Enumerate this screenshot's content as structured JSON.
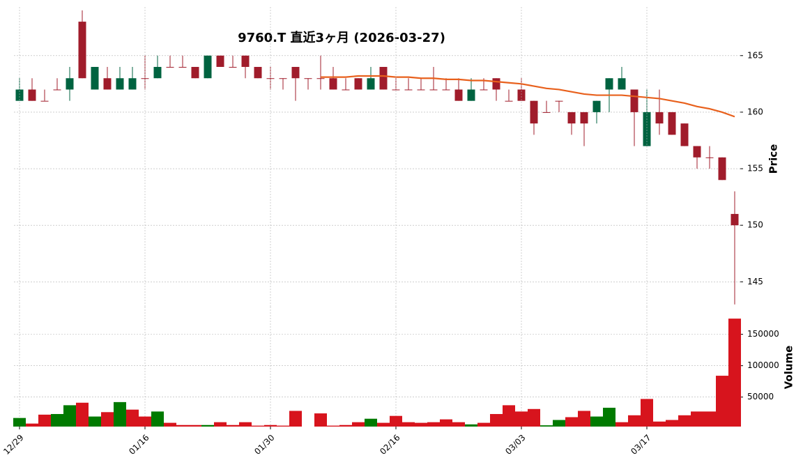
{
  "chart_data": [
    {
      "type": "candlestick",
      "title": "9760.T  直近3ヶ月  (2026-03-27)",
      "ylabel": "Price",
      "open": [
        161,
        162,
        161,
        162,
        162,
        168,
        162,
        163,
        162,
        162,
        163,
        163,
        164,
        164,
        164,
        163,
        165,
        164,
        165,
        164,
        163,
        163,
        164,
        163,
        163,
        163,
        162,
        163,
        162,
        164,
        162,
        162,
        162,
        162,
        162,
        162,
        161,
        162,
        163,
        161,
        162,
        161,
        160,
        161,
        160,
        160,
        160,
        162,
        162,
        162,
        157,
        160,
        160,
        159,
        157,
        156,
        156,
        151
      ],
      "high": [
        163,
        163,
        162,
        163,
        164,
        169,
        164,
        164,
        164,
        164,
        165,
        165,
        165,
        165,
        164,
        165,
        165,
        165,
        165,
        164,
        164,
        163,
        164,
        163,
        165,
        164,
        163,
        163,
        164,
        164,
        163,
        163,
        163,
        164,
        163,
        163,
        163,
        163,
        163,
        162,
        163,
        161,
        161,
        161,
        160,
        160,
        161,
        163,
        164,
        162,
        162,
        162,
        160,
        159,
        157,
        157,
        156,
        153
      ],
      "low": [
        161,
        161,
        161,
        162,
        161,
        163,
        162,
        162,
        162,
        162,
        162,
        163,
        164,
        164,
        163,
        163,
        164,
        164,
        163,
        163,
        162,
        162,
        161,
        162,
        162,
        162,
        162,
        162,
        162,
        162,
        162,
        162,
        162,
        162,
        162,
        161,
        161,
        162,
        161,
        161,
        161,
        158,
        160,
        160,
        158,
        157,
        159,
        160,
        162,
        157,
        157,
        158,
        158,
        157,
        155,
        155,
        154,
        143
      ],
      "close": [
        162,
        161,
        161,
        162,
        163,
        163,
        164,
        162,
        163,
        163,
        163,
        164,
        164,
        164,
        163,
        165,
        164,
        164,
        164,
        163,
        163,
        163,
        163,
        163,
        163,
        162,
        162,
        162,
        163,
        162,
        162,
        162,
        162,
        162,
        162,
        161,
        162,
        162,
        162,
        161,
        161,
        159,
        160,
        161,
        159,
        159,
        161,
        163,
        163,
        160,
        160,
        159,
        158,
        157,
        156,
        156,
        154,
        150
      ],
      "up_color": "#006340",
      "down_color": "#a01c2b",
      "ma": {
        "color": "#e8601c",
        "values": [
          null,
          null,
          null,
          null,
          null,
          null,
          null,
          null,
          null,
          null,
          null,
          null,
          null,
          null,
          null,
          null,
          null,
          null,
          null,
          null,
          null,
          null,
          null,
          null,
          163.1,
          163.1,
          163.1,
          163.2,
          163.2,
          163.2,
          163.1,
          163.1,
          163.0,
          163.0,
          162.9,
          162.9,
          162.8,
          162.8,
          162.7,
          162.6,
          162.5,
          162.3,
          162.1,
          162.0,
          161.8,
          161.6,
          161.5,
          161.5,
          161.5,
          161.4,
          161.3,
          161.2,
          161.0,
          160.8,
          160.5,
          160.3,
          160.0,
          159.6
        ]
      },
      "ylim": [
        142.8,
        169.3
      ],
      "yticks": [
        145,
        150,
        155,
        160,
        165
      ],
      "grid": true
    },
    {
      "type": "bar",
      "ylabel": "Volume",
      "categories": [
        "12/29",
        null,
        null,
        null,
        null,
        null,
        null,
        null,
        null,
        null,
        "01/16",
        null,
        null,
        null,
        null,
        null,
        null,
        null,
        null,
        null,
        "01/30",
        null,
        null,
        null,
        null,
        null,
        null,
        null,
        null,
        null,
        "02/16",
        null,
        null,
        null,
        null,
        null,
        null,
        null,
        null,
        null,
        "03/03",
        null,
        null,
        null,
        null,
        null,
        null,
        null,
        null,
        null,
        "03/17",
        null,
        null,
        null,
        null,
        null,
        null,
        null
      ],
      "values": [
        16700,
        7800,
        22000,
        23000,
        37000,
        41000,
        19000,
        26000,
        42000,
        30000,
        19000,
        27000,
        9000,
        5500,
        5500,
        5500,
        10000,
        5500,
        10000,
        4500,
        5500,
        4500,
        28000,
        null,
        24000,
        4500,
        5500,
        10000,
        15500,
        9000,
        20000,
        10000,
        9000,
        10000,
        14500,
        10000,
        6500,
        9000,
        23000,
        37000,
        27000,
        31000,
        5000,
        13500,
        18000,
        28000,
        19000,
        33000,
        10000,
        21000,
        47000,
        11000,
        13500,
        21000,
        27000,
        27000,
        84000,
        175000
      ],
      "colors": [
        "#007a00",
        "#d7141d",
        "#d7141d",
        "#007a00",
        "#007a00",
        "#d7141d",
        "#007a00",
        "#d7141d",
        "#007a00",
        "#d7141d",
        "#d7141d",
        "#007a00",
        "#d7141d",
        "#d7141d",
        "#d7141d",
        "#007a00",
        "#d7141d",
        "#d7141d",
        "#d7141d",
        "#d7141d",
        "#d7141d",
        "#d7141d",
        "#d7141d",
        "#d7141d",
        "#d7141d",
        "#d7141d",
        "#d7141d",
        "#d7141d",
        "#007a00",
        "#d7141d",
        "#d7141d",
        "#d7141d",
        "#d7141d",
        "#d7141d",
        "#d7141d",
        "#d7141d",
        "#007a00",
        "#d7141d",
        "#d7141d",
        "#d7141d",
        "#d7141d",
        "#d7141d",
        "#007a00",
        "#007a00",
        "#d7141d",
        "#d7141d",
        "#007a00",
        "#007a00",
        "#d7141d",
        "#d7141d",
        "#d7141d",
        "#d7141d",
        "#d7141d",
        "#d7141d",
        "#d7141d",
        "#d7141d",
        "#d7141d",
        "#d7141d"
      ],
      "ylim": [
        3000,
        194000
      ],
      "yticks": [
        50000,
        100000,
        150000
      ],
      "grid": true
    }
  ]
}
